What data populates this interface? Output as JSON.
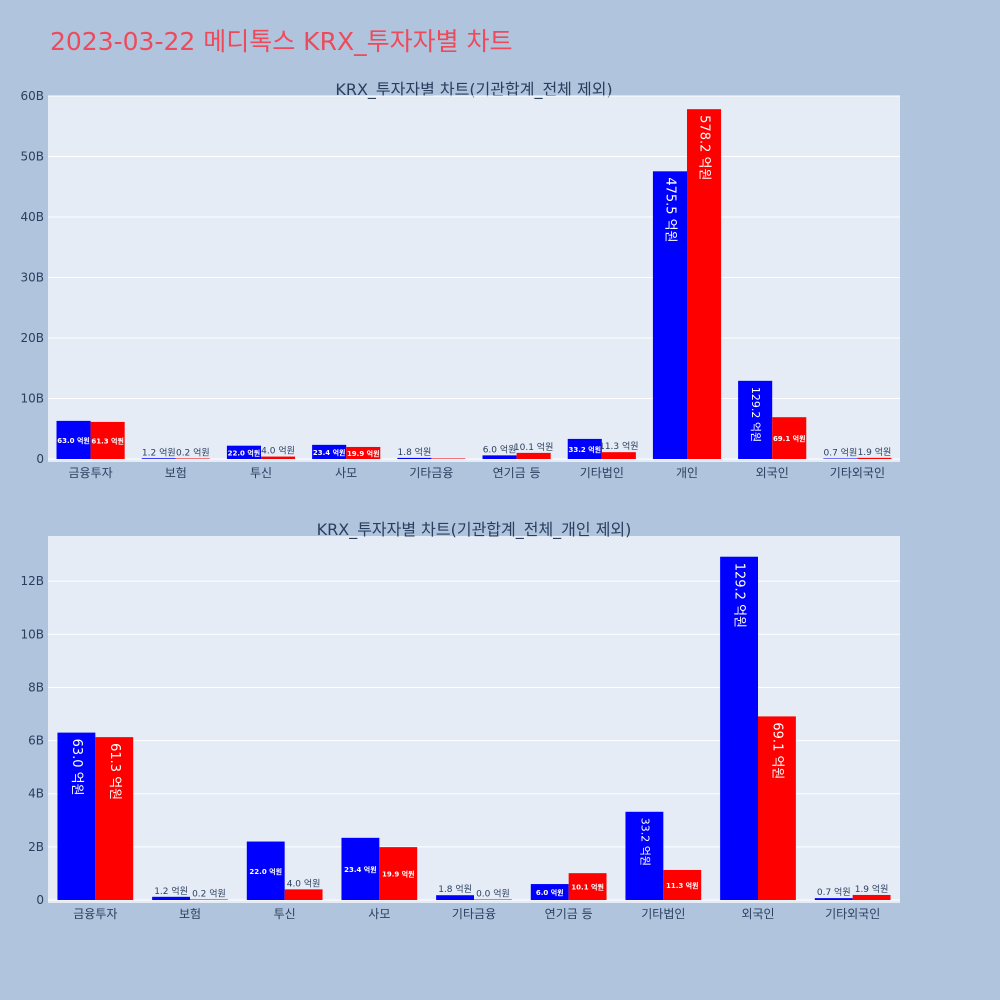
{
  "page": {
    "title": "2023-03-22 메디톡스 KRX_투자자별 차트"
  },
  "colors": {
    "buy": "#0000ff",
    "sell": "#ff0000",
    "plot_bg": "#e5ecf6",
    "page_bg": "#b0c4de",
    "title": "#ef4a5a"
  },
  "chart_data": [
    {
      "type": "bar",
      "title": "KRX_투자자별 차트(기관합계_전체 제외)",
      "categories": [
        "금융투자",
        "보험",
        "투신",
        "사모",
        "기타금융",
        "연기금 등",
        "기타법인",
        "개인",
        "외국인",
        "기타외국인"
      ],
      "ylim": [
        0,
        60000000000
      ],
      "yticks": [
        0,
        10000000000,
        20000000000,
        30000000000,
        40000000000,
        50000000000,
        60000000000
      ],
      "ytick_labels": [
        "0",
        "10B",
        "20B",
        "30B",
        "40B",
        "50B",
        "60B"
      ],
      "grid": true,
      "series": [
        {
          "color": "#0000ff",
          "values": [
            6300000000,
            120000000,
            2200000000,
            2340000000,
            180000000,
            600000000,
            3320000000,
            47550000000,
            12920000000,
            70000000
          ],
          "labels": [
            "63.0 억원",
            "1.2 억원",
            "22.0 억원",
            "23.4 억원",
            "1.8 억원",
            "6.0 억원",
            "33.2 억원",
            "475.5 억원",
            "129.2 억원",
            "0.7 억원"
          ]
        },
        {
          "color": "#ff0000",
          "values": [
            6130000000,
            20000000,
            400000000,
            1990000000,
            0,
            1010000000,
            1130000000,
            57820000000,
            6910000000,
            190000000
          ],
          "labels": [
            "61.3 억원",
            "0.2 억원",
            "4.0 억원",
            "19.9 억원",
            "",
            "10.1 억원",
            "11.3 억원",
            "578.2 억원",
            "69.1 억원",
            "1.9 억원"
          ]
        }
      ]
    },
    {
      "type": "bar",
      "title": "KRX_투자자별 차트(기관합계_전체_개인 제외)",
      "categories": [
        "금융투자",
        "보험",
        "투신",
        "사모",
        "기타금융",
        "연기금 등",
        "기타법인",
        "외국인",
        "기타외국인"
      ],
      "ylim": [
        0,
        13700000000
      ],
      "yticks": [
        0,
        2000000000,
        4000000000,
        6000000000,
        8000000000,
        10000000000,
        12000000000
      ],
      "ytick_labels": [
        "0",
        "2B",
        "4B",
        "6B",
        "8B",
        "10B",
        "12B"
      ],
      "grid": true,
      "series": [
        {
          "color": "#0000ff",
          "values": [
            6300000000,
            120000000,
            2200000000,
            2340000000,
            180000000,
            600000000,
            3320000000,
            12920000000,
            70000000
          ],
          "labels": [
            "63.0 억원",
            "1.2 억원",
            "22.0 억원",
            "23.4 억원",
            "1.8 억원",
            "6.0 억원",
            "33.2 억원",
            "129.2 억원",
            "0.7 억원"
          ]
        },
        {
          "color": "#ff0000",
          "values": [
            6130000000,
            20000000,
            400000000,
            1990000000,
            0,
            1010000000,
            1130000000,
            6910000000,
            190000000
          ],
          "labels": [
            "61.3 억원",
            "0.2 억원",
            "4.0 억원",
            "19.9 억원",
            "0.0 억원",
            "10.1 억원",
            "11.3 억원",
            "69.1 억원",
            "1.9 억원"
          ]
        }
      ]
    }
  ]
}
